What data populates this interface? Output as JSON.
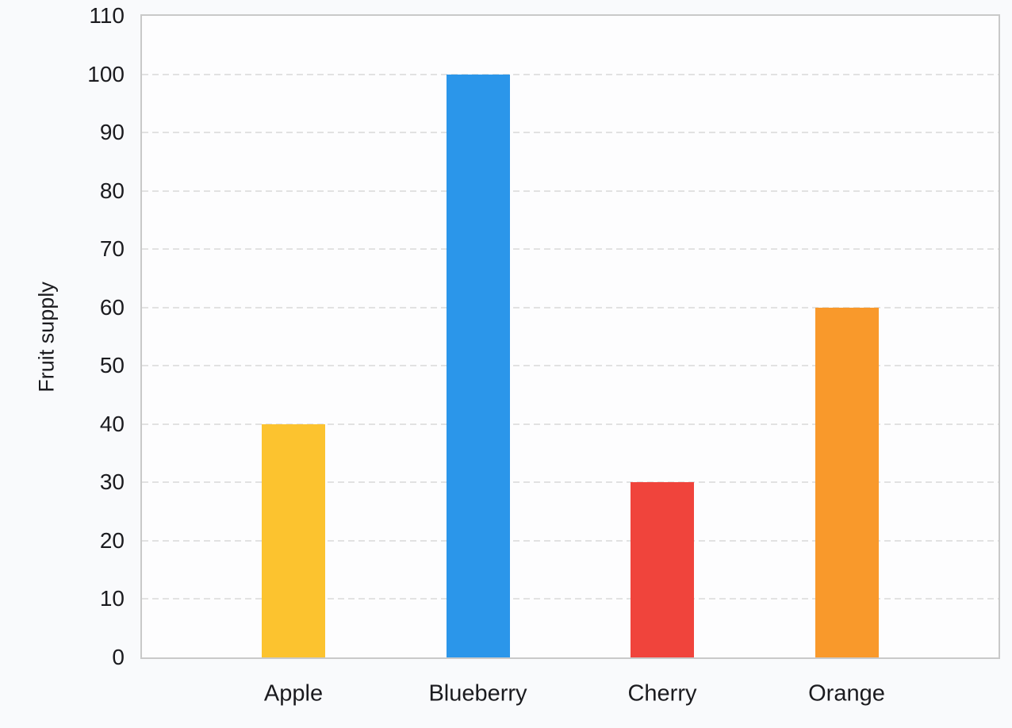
{
  "chart_data": {
    "type": "bar",
    "title": "",
    "categories": [
      "Apple",
      "Blueberry",
      "Cherry",
      "Orange"
    ],
    "values": [
      40,
      100,
      30,
      60
    ],
    "bar_colors": [
      "#fcc32f",
      "#2b96ea",
      "#f0443c",
      "#f9992b"
    ],
    "xlabel": "",
    "ylabel": "Fruit supply",
    "ylim": [
      0,
      110
    ],
    "yticks": [
      0,
      10,
      20,
      30,
      40,
      50,
      60,
      70,
      80,
      90,
      100,
      110
    ],
    "grid": "horizontal-dashed",
    "legend_position": "none"
  },
  "style": {
    "page_background": "#f9fafc",
    "plot_background": "#fdfdfe",
    "frame_color": "#c9c9c9",
    "gridline_color": "#e2e2e2",
    "text_color": "#1b1b1f"
  }
}
